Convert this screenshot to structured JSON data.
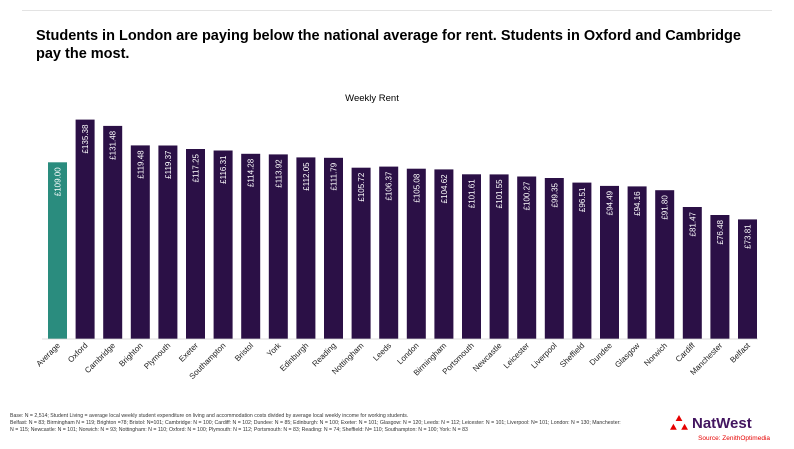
{
  "headline": "Students in London are paying below the national average for rent. Students in Oxford and Cambridge pay the most.",
  "chart_data": {
    "type": "bar",
    "title": "Weekly Rent",
    "xlabel": "",
    "ylabel": "",
    "ylim": [
      0,
      145
    ],
    "grid": false,
    "legend": "none",
    "categories": [
      "Average",
      "Oxford",
      "Cambridge",
      "Brighton",
      "Plymouth",
      "Exeter",
      "Southampton",
      "Bristol",
      "York",
      "Edinburgh",
      "Reading",
      "Nottingham",
      "Leeds",
      "London",
      "Birmingham",
      "Portsmouth",
      "Newcastle",
      "Leicester",
      "Liverpool",
      "Sheffield",
      "Dundee",
      "Glasgow",
      "Norwich",
      "Cardiff",
      "Manchester",
      "Belfast"
    ],
    "values": [
      109.0,
      135.38,
      131.48,
      119.48,
      119.37,
      117.25,
      116.31,
      114.28,
      113.92,
      112.05,
      111.79,
      105.72,
      106.37,
      105.08,
      104.62,
      101.61,
      101.55,
      100.27,
      99.35,
      96.51,
      94.49,
      94.16,
      91.8,
      81.47,
      76.48,
      73.81
    ],
    "data_labels": [
      "£109.00",
      "£135.38",
      "£131.48",
      "£119.48",
      "£119.37",
      "£117.25",
      "£116.31",
      "£114.28",
      "£113.92",
      "£112.05",
      "£111.79",
      "£105.72",
      "£106.37",
      "£105.08",
      "£104.62",
      "£101.61",
      "£101.55",
      "£100.27",
      "£99.35",
      "£96.51",
      "£94.49",
      "£94.16",
      "£91.80",
      "£81.47",
      "£76.48",
      "£73.81"
    ],
    "colors": {
      "highlight": "#2a8c7e",
      "bar": "#2b1046",
      "label": "#ffffff"
    }
  },
  "footnote": {
    "line1": "Base: N = 2,514;  Student Living = average local weekly student expenditure on living and accommodation costs divided by average local weekly income for working students.",
    "line2": "Belfast: N = 83; Birmingham N = 119; Brighton =78; Bristol: N=101; Cambridge: N = 100; Cardiff: N = 102; Dundee: N = 85; Edinburgh: N = 100; Exeter: N = 101; Glasgow: N = 120; Leeds: N = 112; Leicester: N = 101; Liverpool: N= 101; London: N = 130; Manchester: N = 115; Newcastle: N = 101; Norwich: N = 93; Nottingham: N = 110; Oxford: N = 100; Plymouth: N = 112; Portsmouth: N = 83; Reading: N = 74; Sheffield: N= 110; Southampton: N = 100; York: N = 83"
  },
  "brand": {
    "name": "NatWest",
    "logo_icon": "natwest-logo-icon",
    "color": "#42145f",
    "logo_color": "#e60000"
  },
  "source": "Source: ZenithOptimedia"
}
